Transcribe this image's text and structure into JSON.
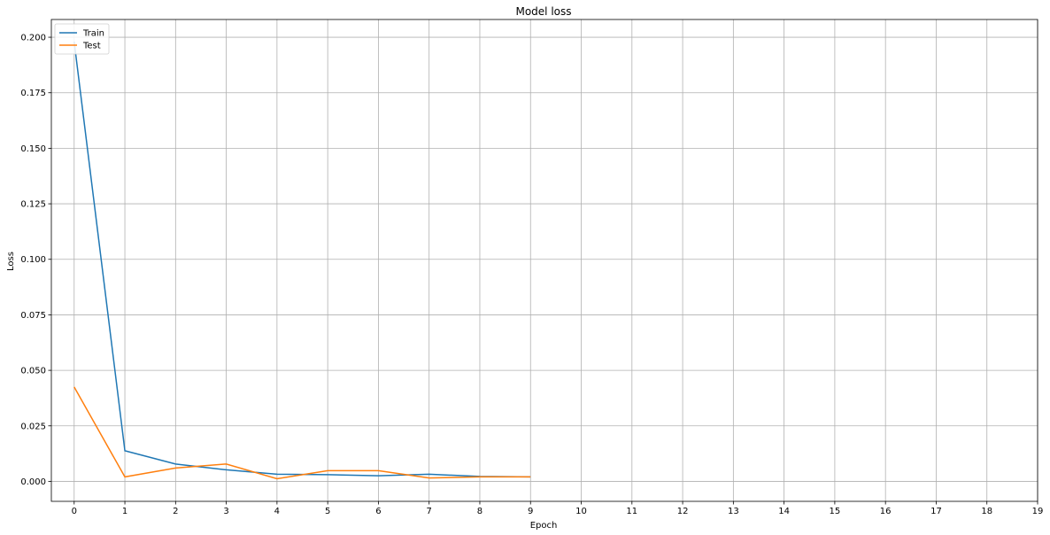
{
  "chart_data": {
    "type": "line",
    "title": "Model loss",
    "xlabel": "Epoch",
    "ylabel": "Loss",
    "xlim": [
      -0.45,
      19
    ],
    "ylim": [
      -0.009,
      0.208
    ],
    "xticks": [
      0,
      1,
      2,
      3,
      4,
      5,
      6,
      7,
      8,
      9,
      10,
      11,
      12,
      13,
      14,
      15,
      16,
      17,
      18,
      19
    ],
    "yticks": [
      0.0,
      0.025,
      0.05,
      0.075,
      0.1,
      0.125,
      0.15,
      0.175,
      0.2
    ],
    "ytick_labels": [
      "0.000",
      "0.025",
      "0.050",
      "0.075",
      "0.100",
      "0.125",
      "0.150",
      "0.175",
      "0.200"
    ],
    "grid": true,
    "legend_position": "top-left",
    "x": [
      0,
      1,
      2,
      3,
      4,
      5,
      6,
      7,
      8,
      9
    ],
    "series": [
      {
        "name": "Train",
        "color": "#1f77b4",
        "values": [
          0.198,
          0.0138,
          0.0078,
          0.0052,
          0.0032,
          0.003,
          0.0025,
          0.0032,
          0.0022,
          0.002
        ]
      },
      {
        "name": "Test",
        "color": "#ff7f0e",
        "values": [
          0.0425,
          0.002,
          0.006,
          0.0078,
          0.0012,
          0.0048,
          0.0048,
          0.0015,
          0.002,
          0.002
        ]
      }
    ]
  }
}
